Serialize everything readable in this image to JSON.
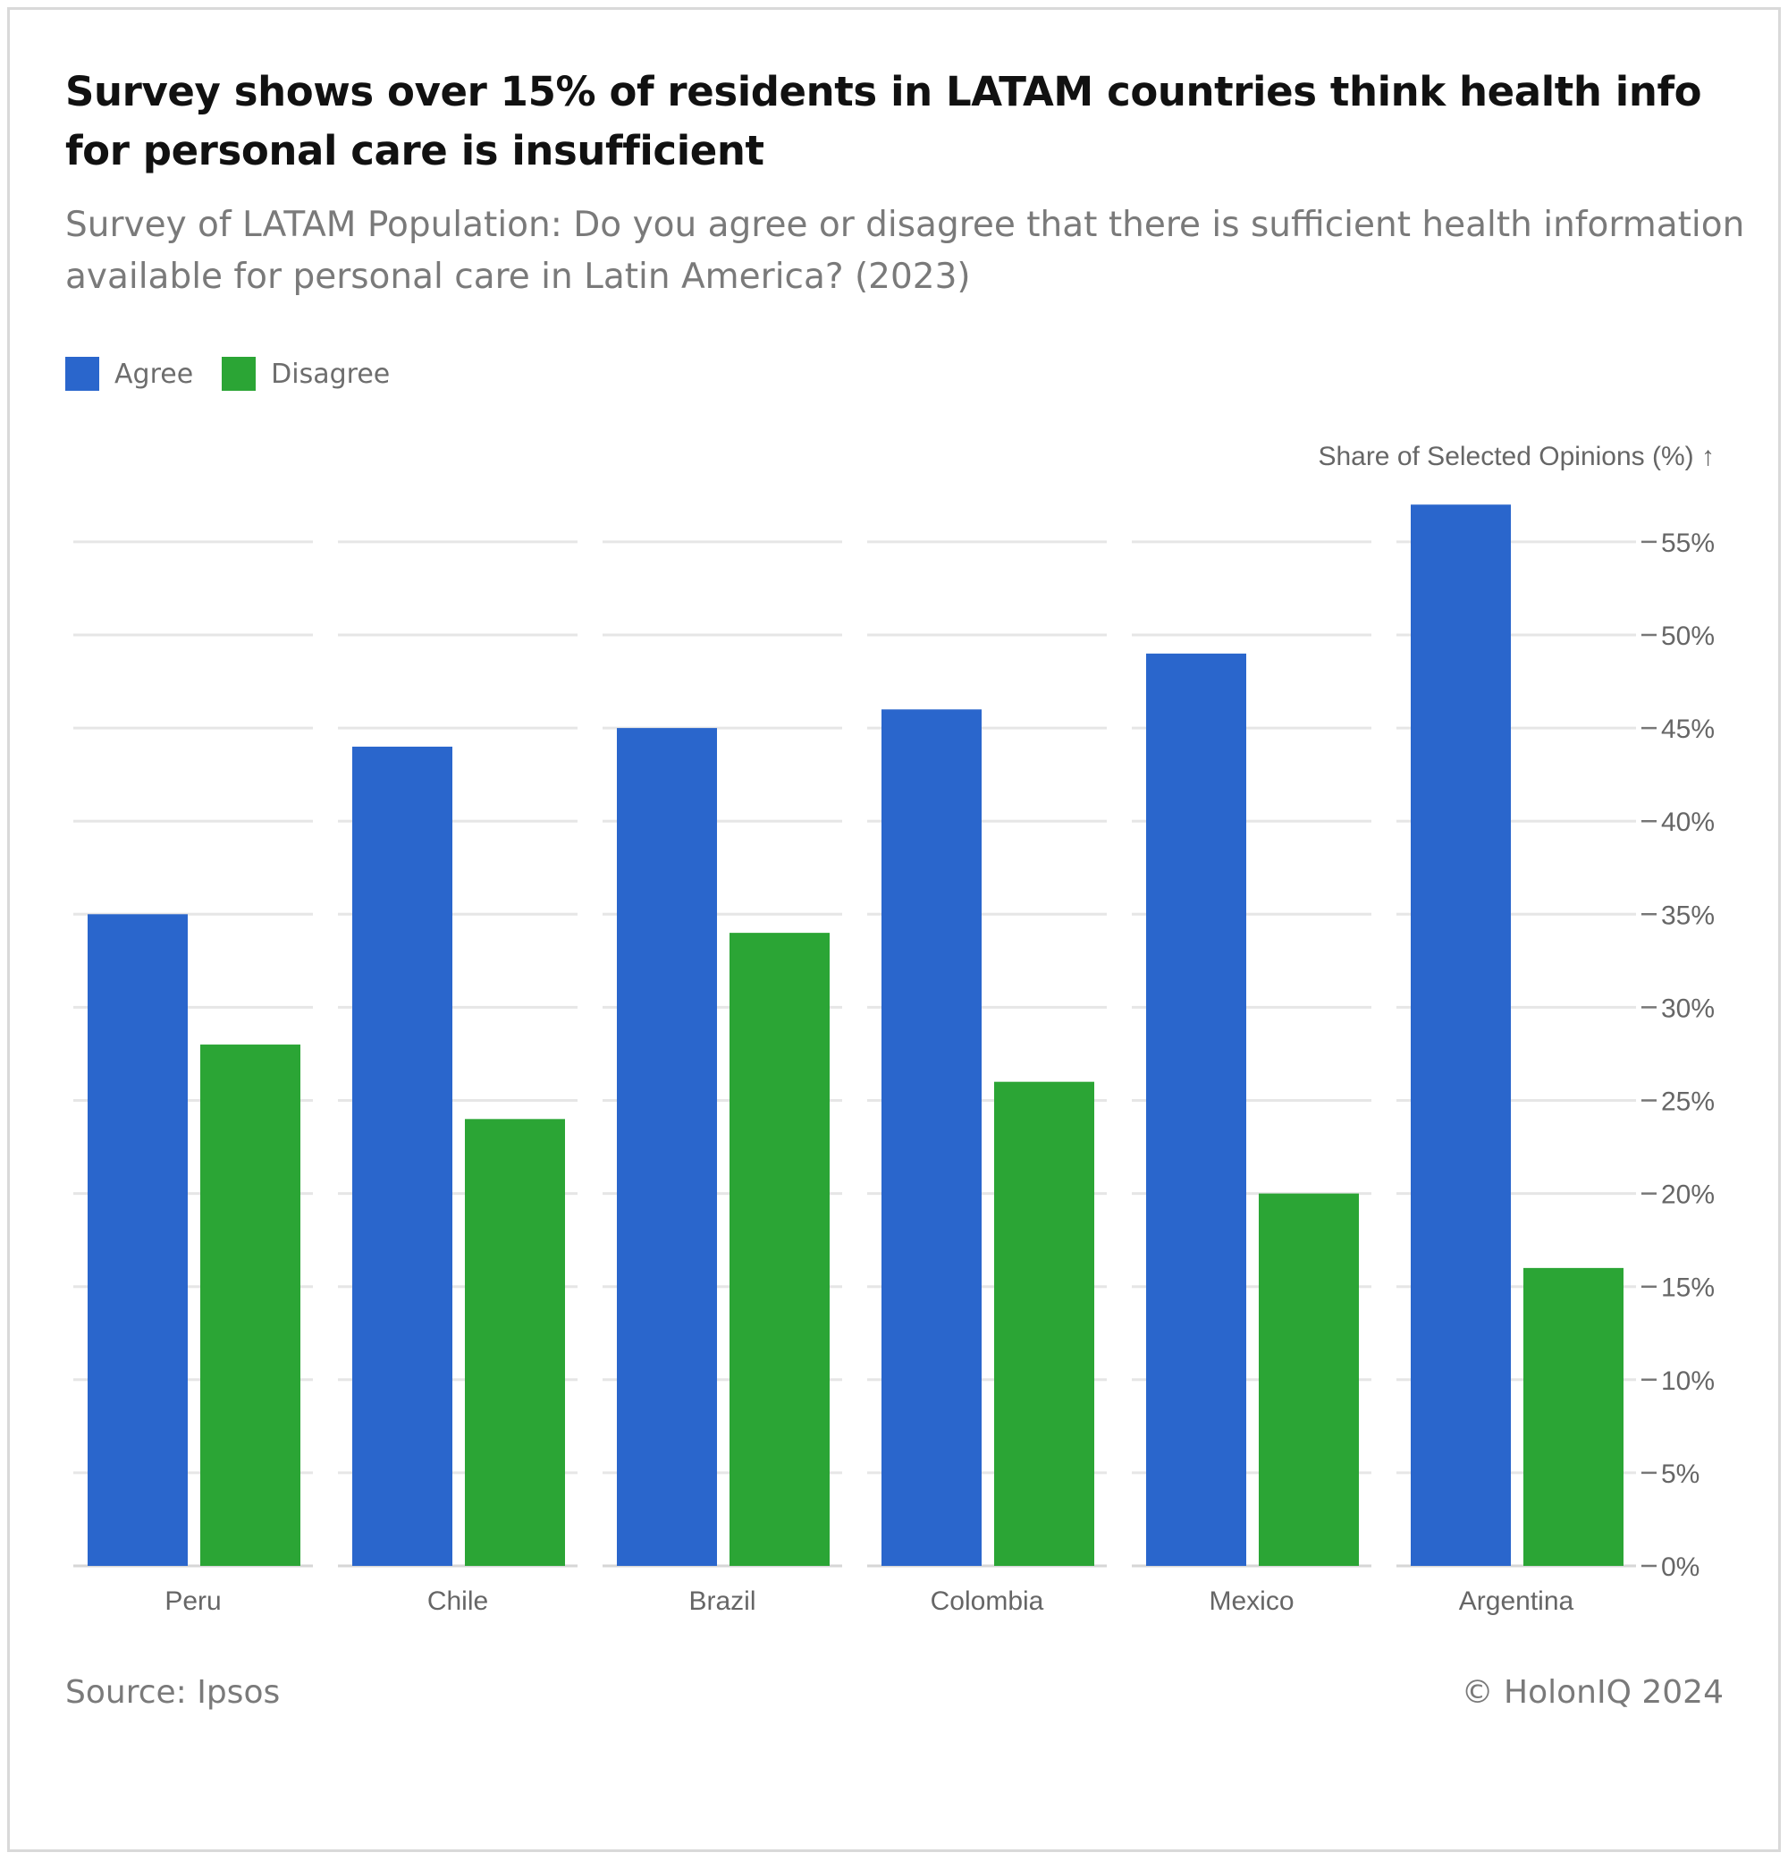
{
  "title": "Survey shows over 15% of residents in LATAM countries think health info for personal care is insufficient",
  "subtitle": "Survey of LATAM Population: Do you agree or disagree that there is sufficient health information available for personal care in Latin America? (2023)",
  "legend": [
    {
      "label": "Agree",
      "color": "#2a66cc"
    },
    {
      "label": "Disagree",
      "color": "#2ba535"
    }
  ],
  "footer": {
    "source": "Source: Ipsos",
    "copyright": "© HolonIQ 2024"
  },
  "chart_data": {
    "type": "bar",
    "title": "Survey shows over 15% of residents in LATAM countries think health info for personal care is insufficient",
    "ylabel": "Share of Selected Opinions (%) ↑",
    "xlabel": "",
    "categories": [
      "Peru",
      "Chile",
      "Brazil",
      "Colombia",
      "Mexico",
      "Argentina"
    ],
    "series": [
      {
        "name": "Agree",
        "color": "#2a66cc",
        "values": [
          35,
          44,
          45,
          46,
          49,
          57
        ]
      },
      {
        "name": "Disagree",
        "color": "#2ba535",
        "values": [
          28,
          24,
          34,
          26,
          20,
          16
        ]
      }
    ],
    "ylim": [
      0,
      55
    ],
    "yticks": [
      0,
      5,
      10,
      15,
      20,
      25,
      30,
      35,
      40,
      45,
      50,
      55
    ],
    "ytick_labels": [
      "0%",
      "5%",
      "10%",
      "15%",
      "20%",
      "25%",
      "30%",
      "35%",
      "40%",
      "45%",
      "50%",
      "55%"
    ],
    "y_axis_side": "right",
    "grid": true,
    "legend_position": "top-left"
  }
}
